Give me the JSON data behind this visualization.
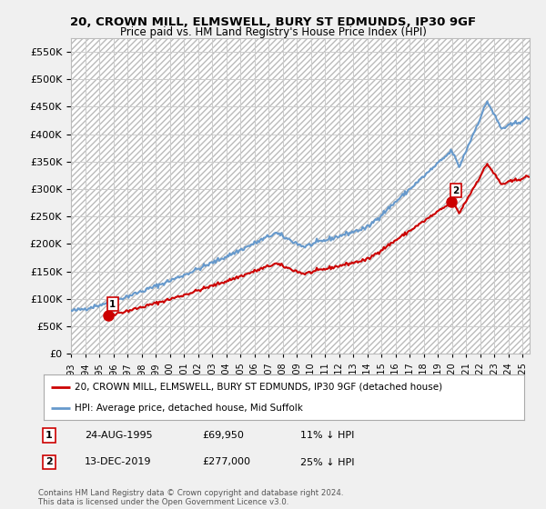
{
  "title": "20, CROWN MILL, ELMSWELL, BURY ST EDMUNDS, IP30 9GF",
  "subtitle": "Price paid vs. HM Land Registry's House Price Index (HPI)",
  "ytick_values": [
    0,
    50000,
    100000,
    150000,
    200000,
    250000,
    300000,
    350000,
    400000,
    450000,
    500000,
    550000
  ],
  "ylim": [
    0,
    575000
  ],
  "xlim_start": 1993.0,
  "xlim_end": 2025.5,
  "xticks": [
    1993,
    1994,
    1995,
    1996,
    1997,
    1998,
    1999,
    2000,
    2001,
    2002,
    2003,
    2004,
    2005,
    2006,
    2007,
    2008,
    2009,
    2010,
    2011,
    2012,
    2013,
    2014,
    2015,
    2016,
    2017,
    2018,
    2019,
    2020,
    2021,
    2022,
    2023,
    2024,
    2025
  ],
  "sale_points": [
    {
      "date": 1995.65,
      "price": 69950,
      "label": "1"
    },
    {
      "date": 2019.96,
      "price": 277000,
      "label": "2"
    }
  ],
  "legend_entries": [
    {
      "color": "#cc0000",
      "label": "20, CROWN MILL, ELMSWELL, BURY ST EDMUNDS, IP30 9GF (detached house)"
    },
    {
      "color": "#6699cc",
      "label": "HPI: Average price, detached house, Mid Suffolk"
    }
  ],
  "annotations": [
    {
      "label": "1",
      "date": "24-AUG-1995",
      "price": "£69,950",
      "hpi_note": "11% ↓ HPI"
    },
    {
      "label": "2",
      "date": "13-DEC-2019",
      "price": "£277,000",
      "hpi_note": "25% ↓ HPI"
    }
  ],
  "footnote": "Contains HM Land Registry data © Crown copyright and database right 2024.\nThis data is licensed under the Open Government Licence v3.0.",
  "bg_color": "#f0f0f0",
  "hpi_line_color": "#6699cc",
  "price_line_color": "#cc0000",
  "sale_marker_color": "#cc0000",
  "grid_color": "#cccccc"
}
